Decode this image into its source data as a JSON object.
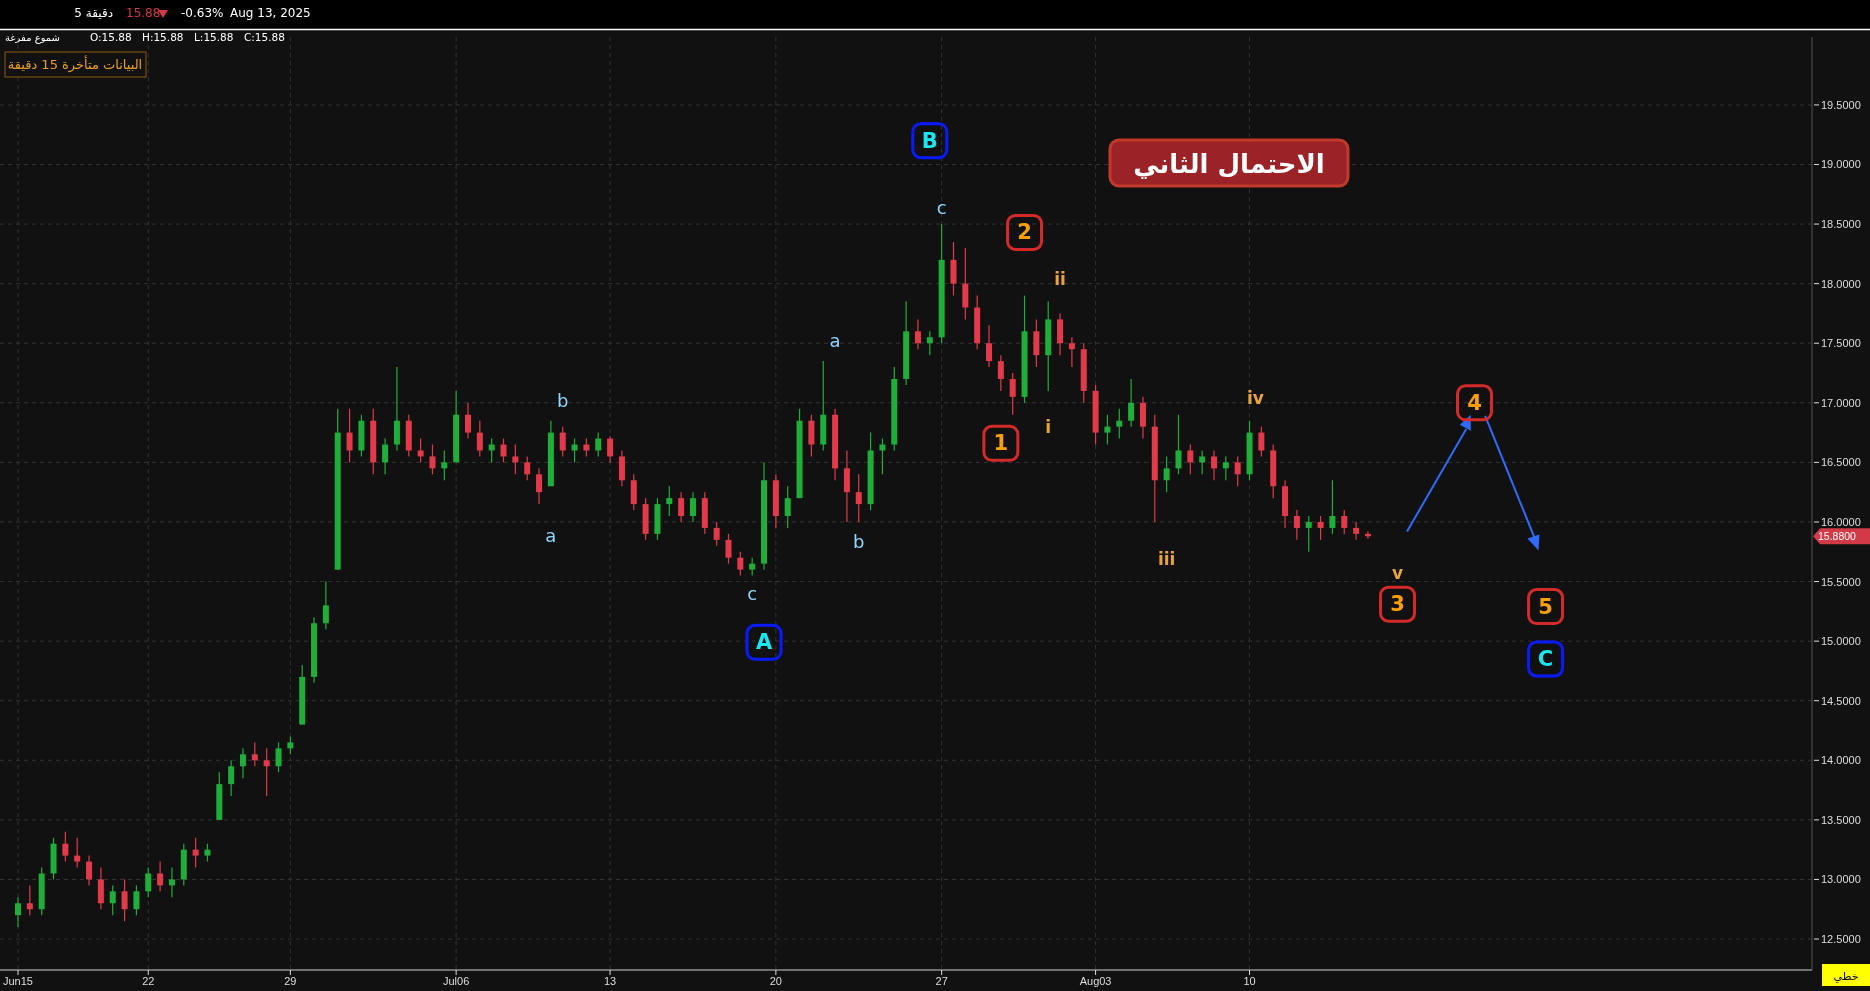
{
  "chart_data": {
    "type": "candlestick",
    "title": "الاحتمال الثاني",
    "categories": [
      "Jun15",
      null,
      null,
      null,
      null,
      null,
      null,
      null,
      null,
      null,
      null,
      "22",
      null,
      null,
      null,
      null,
      null,
      null,
      null,
      null,
      null,
      null,
      null,
      "29",
      null,
      null,
      null,
      null,
      null,
      null,
      null,
      null,
      null,
      null,
      null,
      null,
      null,
      "Jul06",
      null,
      null,
      null,
      null,
      null,
      null,
      null,
      null,
      null,
      null,
      null,
      null,
      "13",
      null,
      null,
      null,
      null,
      null,
      null,
      null,
      null,
      null,
      null,
      null,
      null,
      null,
      "20",
      null,
      null,
      null,
      null,
      null,
      null,
      null,
      null,
      null,
      null,
      null,
      null,
      null,
      "27",
      null,
      null,
      null,
      null,
      null,
      null,
      null,
      null,
      null,
      null,
      null,
      null,
      "Aug03",
      null,
      null,
      null,
      null,
      null,
      null,
      null,
      null,
      null,
      null,
      null,
      null,
      "10",
      null,
      null,
      null,
      null,
      null,
      null,
      null,
      null,
      null,
      null,
      null,
      null,
      null,
      null,
      null,
      null,
      null,
      null,
      null,
      null,
      null,
      null,
      null,
      null,
      null,
      null,
      null,
      null,
      null,
      null,
      null,
      null,
      null,
      null,
      null,
      null,
      null,
      null,
      null,
      null,
      null,
      null,
      null,
      null,
      null,
      null,
      null
    ],
    "ohlc": [
      [
        12.7,
        12.85,
        12.6,
        12.8
      ],
      [
        12.8,
        12.95,
        12.7,
        12.75
      ],
      [
        12.75,
        13.1,
        12.7,
        13.05
      ],
      [
        13.05,
        13.35,
        13.0,
        13.3
      ],
      [
        13.3,
        13.4,
        13.15,
        13.2
      ],
      [
        13.2,
        13.35,
        13.1,
        13.15
      ],
      [
        13.15,
        13.2,
        12.95,
        13.0
      ],
      [
        13.0,
        13.1,
        12.75,
        12.8
      ],
      [
        12.8,
        12.95,
        12.7,
        12.9
      ],
      [
        12.9,
        13.0,
        12.65,
        12.75
      ],
      [
        12.75,
        12.95,
        12.7,
        12.9
      ],
      [
        12.9,
        13.1,
        12.85,
        13.05
      ],
      [
        13.05,
        13.15,
        12.9,
        12.95
      ],
      [
        12.95,
        13.1,
        12.85,
        13.0
      ],
      [
        13.0,
        13.3,
        12.95,
        13.25
      ],
      [
        13.25,
        13.35,
        13.1,
        13.2
      ],
      [
        13.2,
        13.3,
        13.15,
        13.25
      ],
      [
        13.5,
        13.9,
        13.5,
        13.8
      ],
      [
        13.8,
        14.0,
        13.7,
        13.95
      ],
      [
        13.95,
        14.1,
        13.85,
        14.05
      ],
      [
        14.05,
        14.15,
        13.95,
        14.0
      ],
      [
        14.0,
        14.1,
        13.7,
        13.95
      ],
      [
        13.95,
        14.15,
        13.9,
        14.1
      ],
      [
        14.1,
        14.2,
        14.05,
        14.15
      ],
      [
        14.3,
        14.8,
        14.3,
        14.7
      ],
      [
        14.7,
        15.2,
        14.65,
        15.15
      ],
      [
        15.15,
        15.5,
        15.1,
        15.3
      ],
      [
        15.6,
        16.95,
        15.6,
        16.75
      ],
      [
        16.75,
        16.95,
        16.5,
        16.6
      ],
      [
        16.6,
        16.9,
        16.55,
        16.85
      ],
      [
        16.85,
        16.95,
        16.4,
        16.5
      ],
      [
        16.5,
        16.7,
        16.4,
        16.65
      ],
      [
        16.65,
        17.3,
        16.6,
        16.85
      ],
      [
        16.85,
        16.9,
        16.55,
        16.6
      ],
      [
        16.6,
        16.7,
        16.5,
        16.55
      ],
      [
        16.55,
        16.65,
        16.4,
        16.45
      ],
      [
        16.45,
        16.6,
        16.35,
        16.5
      ],
      [
        16.5,
        17.1,
        16.5,
        16.9
      ],
      [
        16.9,
        17.0,
        16.7,
        16.75
      ],
      [
        16.75,
        16.85,
        16.55,
        16.6
      ],
      [
        16.6,
        16.7,
        16.5,
        16.65
      ],
      [
        16.65,
        16.7,
        16.5,
        16.55
      ],
      [
        16.55,
        16.65,
        16.4,
        16.5
      ],
      [
        16.5,
        16.55,
        16.35,
        16.4
      ],
      [
        16.4,
        16.45,
        16.15,
        16.25
      ],
      [
        16.3,
        16.85,
        16.3,
        16.75
      ],
      [
        16.75,
        16.8,
        16.55,
        16.6
      ],
      [
        16.6,
        16.7,
        16.5,
        16.65
      ],
      [
        16.65,
        16.7,
        16.55,
        16.6
      ],
      [
        16.6,
        16.75,
        16.55,
        16.7
      ],
      [
        16.7,
        16.72,
        16.5,
        16.55
      ],
      [
        16.55,
        16.6,
        16.3,
        16.35
      ],
      [
        16.35,
        16.4,
        16.1,
        16.15
      ],
      [
        16.15,
        16.2,
        15.85,
        15.9
      ],
      [
        15.9,
        16.2,
        15.85,
        16.15
      ],
      [
        16.15,
        16.3,
        16.05,
        16.2
      ],
      [
        16.2,
        16.25,
        16.0,
        16.05
      ],
      [
        16.05,
        16.25,
        16.0,
        16.2
      ],
      [
        16.2,
        16.25,
        15.9,
        15.95
      ],
      [
        15.95,
        16.0,
        15.8,
        15.85
      ],
      [
        15.85,
        15.9,
        15.65,
        15.7
      ],
      [
        15.7,
        15.75,
        15.55,
        15.6
      ],
      [
        15.6,
        15.7,
        15.55,
        15.65
      ],
      [
        15.65,
        16.5,
        15.6,
        16.35
      ],
      [
        16.35,
        16.4,
        15.95,
        16.05
      ],
      [
        16.05,
        16.3,
        15.95,
        16.2
      ],
      [
        16.2,
        16.95,
        16.2,
        16.85
      ],
      [
        16.85,
        16.9,
        16.55,
        16.65
      ],
      [
        16.65,
        17.35,
        16.6,
        16.9
      ],
      [
        16.9,
        16.95,
        16.35,
        16.45
      ],
      [
        16.45,
        16.6,
        16.0,
        16.25
      ],
      [
        16.25,
        16.4,
        16.0,
        16.15
      ],
      [
        16.15,
        16.75,
        16.1,
        16.6
      ],
      [
        16.6,
        16.7,
        16.4,
        16.65
      ],
      [
        16.65,
        17.3,
        16.6,
        17.2
      ],
      [
        17.2,
        17.85,
        17.15,
        17.6
      ],
      [
        17.6,
        17.7,
        17.45,
        17.5
      ],
      [
        17.5,
        17.6,
        17.4,
        17.55
      ],
      [
        17.55,
        18.5,
        17.5,
        18.2
      ],
      [
        18.2,
        18.35,
        17.9,
        18.0
      ],
      [
        18.0,
        18.3,
        17.7,
        17.8
      ],
      [
        17.8,
        17.9,
        17.45,
        17.5
      ],
      [
        17.5,
        17.65,
        17.3,
        17.35
      ],
      [
        17.35,
        17.4,
        17.1,
        17.2
      ],
      [
        17.2,
        17.25,
        16.9,
        17.05
      ],
      [
        17.05,
        17.9,
        17.0,
        17.6
      ],
      [
        17.6,
        17.7,
        17.3,
        17.4
      ],
      [
        17.4,
        17.85,
        17.1,
        17.7
      ],
      [
        17.7,
        17.75,
        17.4,
        17.5
      ],
      [
        17.5,
        17.55,
        17.3,
        17.45
      ],
      [
        17.45,
        17.5,
        17.0,
        17.1
      ],
      [
        17.1,
        17.15,
        16.65,
        16.75
      ],
      [
        16.75,
        16.9,
        16.65,
        16.8
      ],
      [
        16.8,
        16.95,
        16.7,
        16.85
      ],
      [
        16.85,
        17.2,
        16.8,
        17.0
      ],
      [
        17.0,
        17.05,
        16.7,
        16.8
      ],
      [
        16.8,
        16.9,
        16.0,
        16.35
      ],
      [
        16.35,
        16.55,
        16.25,
        16.45
      ],
      [
        16.45,
        16.9,
        16.4,
        16.6
      ],
      [
        16.6,
        16.65,
        16.4,
        16.5
      ],
      [
        16.5,
        16.6,
        16.4,
        16.55
      ],
      [
        16.55,
        16.6,
        16.35,
        16.45
      ],
      [
        16.45,
        16.55,
        16.35,
        16.5
      ],
      [
        16.5,
        16.55,
        16.3,
        16.4
      ],
      [
        16.4,
        16.85,
        16.35,
        16.75
      ],
      [
        16.75,
        16.8,
        16.55,
        16.6
      ],
      [
        16.6,
        16.65,
        16.2,
        16.3
      ],
      [
        16.3,
        16.35,
        15.95,
        16.05
      ],
      [
        16.05,
        16.1,
        15.85,
        15.95
      ],
      [
        15.95,
        16.05,
        15.75,
        16.0
      ],
      [
        16.0,
        16.05,
        15.85,
        15.95
      ],
      [
        15.95,
        16.35,
        15.9,
        16.05
      ],
      [
        16.05,
        16.1,
        15.9,
        15.95
      ],
      [
        15.95,
        16.0,
        15.85,
        15.9
      ],
      [
        15.9,
        15.92,
        15.86,
        15.88
      ],
      null,
      null,
      null,
      null,
      null,
      null,
      null,
      null,
      null,
      null,
      null,
      null,
      null,
      null,
      null,
      null,
      null,
      null,
      null,
      null,
      null,
      null,
      null,
      null,
      null,
      null,
      null,
      null,
      null,
      null,
      null,
      null,
      null,
      null,
      null,
      null,
      null
    ],
    "ylim": [
      12.24,
      20.07
    ],
    "yticks": [
      {
        "value": 12.5,
        "label": "12.5000"
      },
      {
        "value": 13,
        "label": "13.0000"
      },
      {
        "value": 13.5,
        "label": "13.5000"
      },
      {
        "value": 14,
        "label": "14.0000"
      },
      {
        "value": 14.5,
        "label": "14.5000"
      },
      {
        "value": 15,
        "label": "15.0000"
      },
      {
        "value": 15.5,
        "label": "15.5000"
      },
      {
        "value": 16,
        "label": "16.0000"
      },
      {
        "value": 16.5,
        "label": "16.5000"
      },
      {
        "value": 17,
        "label": "17.0000"
      },
      {
        "value": 17.5,
        "label": "17.5000"
      },
      {
        "value": 18,
        "label": "18.0000"
      },
      {
        "value": 18.5,
        "label": "18.5000"
      },
      {
        "value": 19,
        "label": "19.0000"
      },
      {
        "value": 19.5,
        "label": "19.5000"
      }
    ],
    "grid": true,
    "annotations": [
      "b",
      "a",
      "c",
      "A",
      "a",
      "b",
      "B",
      "c",
      "2",
      "ii",
      "1",
      "i",
      "iii",
      "iv",
      "v",
      "3",
      "4",
      "5",
      "C",
      "5 دقيقة",
      "15.88",
      "-0.63%",
      "Aug 13, 2025",
      "شموع مفرغة",
      "O:15.88",
      "H:15.88",
      "L:15.88",
      "C:15.88",
      "البيانات متأخرة 15 دقيقة",
      "خطي",
      "15.8800"
    ]
  }
}
